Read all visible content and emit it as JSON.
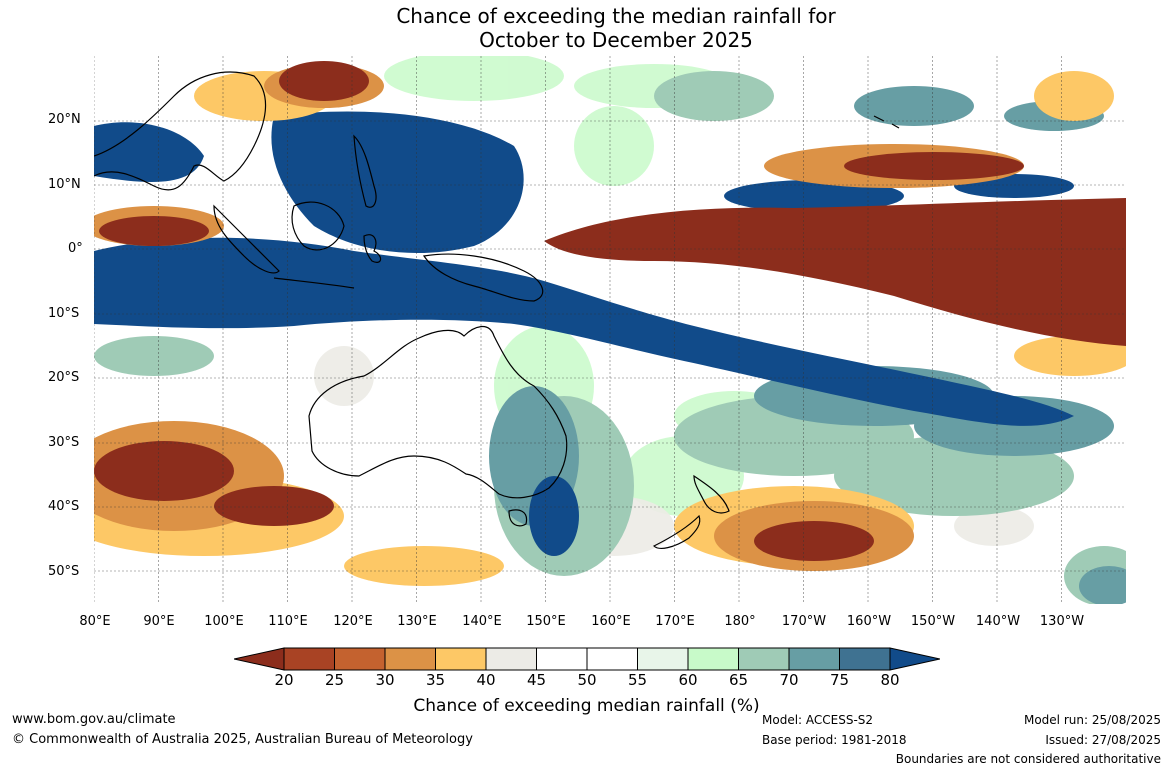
{
  "title": {
    "line1": "Chance of exceeding the median rainfall for",
    "line2": "October to December 2025"
  },
  "map": {
    "type": "gridded-forecast-probability-map",
    "region": "Indo-Pacific",
    "lat_labels": [
      "20°N",
      "10°N",
      "0°",
      "10°S",
      "20°S",
      "30°S",
      "40°S",
      "50°S"
    ],
    "lon_labels": [
      "80°E",
      "90°E",
      "100°E",
      "110°E",
      "120°E",
      "130°E",
      "140°E",
      "150°E",
      "160°E",
      "170°E",
      "180°",
      "170°W",
      "160°W",
      "150°W",
      "140°W",
      "130°W"
    ],
    "gridlines": true,
    "coastlines": true
  },
  "colorbar": {
    "ticks": [
      "20",
      "25",
      "30",
      "35",
      "40",
      "45",
      "50",
      "55",
      "60",
      "65",
      "70",
      "75",
      "80"
    ],
    "colors": [
      "#8c2d1c",
      "#a94324",
      "#c4622f",
      "#dc9246",
      "#fdc866",
      "#ecebe6",
      "#ffffff",
      "#ffffff",
      "#e8f5e9",
      "#c8fac9",
      "#9fcbb6",
      "#679ea4",
      "#3f7291",
      "#114b8a"
    ],
    "label": "Chance of exceeding median rainfall (%)"
  },
  "footer": {
    "url": "www.bom.gov.au/climate",
    "copyright": "© Commonwealth of Australia 2025, Australian Bureau of Meteorology",
    "model": "Model: ACCESS-S2",
    "base_period": "Base period: 1981-2018",
    "model_run": "Model run: 25/08/2025",
    "issued": "Issued: 27/08/2025",
    "disclaimer": "Boundaries are not considered authoritative"
  }
}
